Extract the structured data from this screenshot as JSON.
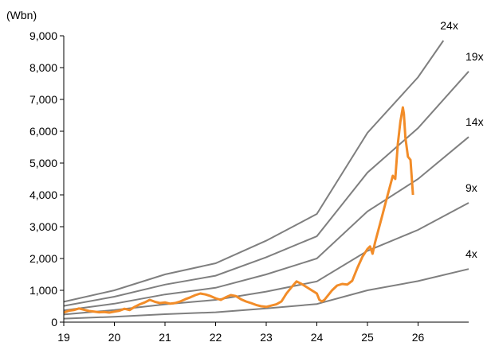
{
  "chart_data": {
    "type": "line",
    "title": "",
    "xlabel": "",
    "ylabel": "(Wbn)",
    "xlim": [
      19,
      27.0
    ],
    "ylim": [
      0,
      9000
    ],
    "x_ticks": [
      "19",
      "20",
      "21",
      "22",
      "23",
      "24",
      "25",
      "26"
    ],
    "y_ticks": [
      "0",
      "1,000",
      "2,000",
      "3,000",
      "4,000",
      "5,000",
      "6,000",
      "7,000",
      "8,000",
      "9,000"
    ],
    "grid": false,
    "colors": {
      "price_line": "#F28C28",
      "band_lines": "#7F7F7F",
      "axis": "#000000"
    },
    "band_series": [
      {
        "name": "24x",
        "points": [
          [
            19,
            640
          ],
          [
            20,
            1000
          ],
          [
            21,
            1500
          ],
          [
            22,
            1850
          ],
          [
            23,
            2560
          ],
          [
            24,
            3400
          ],
          [
            25,
            5950
          ],
          [
            26,
            7700
          ],
          [
            26.5,
            8850
          ]
        ]
      },
      {
        "name": "19x",
        "points": [
          [
            19,
            510
          ],
          [
            20,
            800
          ],
          [
            21,
            1180
          ],
          [
            22,
            1460
          ],
          [
            23,
            2040
          ],
          [
            24,
            2700
          ],
          [
            25,
            4700
          ],
          [
            26,
            6100
          ],
          [
            27,
            7880
          ]
        ]
      },
      {
        "name": "14x",
        "points": [
          [
            19,
            370
          ],
          [
            20,
            580
          ],
          [
            21,
            870
          ],
          [
            22,
            1080
          ],
          [
            23,
            1500
          ],
          [
            24,
            2000
          ],
          [
            25,
            3480
          ],
          [
            26,
            4500
          ],
          [
            27,
            5820
          ]
        ]
      },
      {
        "name": "9x",
        "points": [
          [
            19,
            240
          ],
          [
            20,
            380
          ],
          [
            21,
            560
          ],
          [
            22,
            700
          ],
          [
            23,
            960
          ],
          [
            24,
            1280
          ],
          [
            25,
            2240
          ],
          [
            26,
            2900
          ],
          [
            27,
            3750
          ]
        ]
      },
      {
        "name": "4x",
        "points": [
          [
            19,
            110
          ],
          [
            20,
            170
          ],
          [
            21,
            250
          ],
          [
            22,
            310
          ],
          [
            23,
            430
          ],
          [
            24,
            570
          ],
          [
            25,
            1000
          ],
          [
            26,
            1290
          ],
          [
            27,
            1670
          ]
        ]
      }
    ],
    "price_series": {
      "points": [
        [
          19.0,
          300
        ],
        [
          19.1,
          360
        ],
        [
          19.2,
          380
        ],
        [
          19.3,
          430
        ],
        [
          19.4,
          390
        ],
        [
          19.5,
          350
        ],
        [
          19.6,
          330
        ],
        [
          19.7,
          310
        ],
        [
          19.8,
          320
        ],
        [
          19.9,
          300
        ],
        [
          20.0,
          330
        ],
        [
          20.1,
          360
        ],
        [
          20.2,
          420
        ],
        [
          20.3,
          380
        ],
        [
          20.4,
          480
        ],
        [
          20.5,
          560
        ],
        [
          20.6,
          620
        ],
        [
          20.7,
          700
        ],
        [
          20.8,
          640
        ],
        [
          20.9,
          600
        ],
        [
          21.0,
          620
        ],
        [
          21.1,
          580
        ],
        [
          21.2,
          600
        ],
        [
          21.3,
          650
        ],
        [
          21.4,
          720
        ],
        [
          21.5,
          780
        ],
        [
          21.6,
          850
        ],
        [
          21.7,
          900
        ],
        [
          21.8,
          870
        ],
        [
          21.9,
          820
        ],
        [
          22.0,
          750
        ],
        [
          22.1,
          700
        ],
        [
          22.2,
          780
        ],
        [
          22.3,
          850
        ],
        [
          22.4,
          820
        ],
        [
          22.5,
          720
        ],
        [
          22.6,
          650
        ],
        [
          22.7,
          600
        ],
        [
          22.8,
          540
        ],
        [
          22.9,
          500
        ],
        [
          23.0,
          480
        ],
        [
          23.1,
          520
        ],
        [
          23.2,
          560
        ],
        [
          23.3,
          650
        ],
        [
          23.4,
          900
        ],
        [
          23.5,
          1100
        ],
        [
          23.6,
          1280
        ],
        [
          23.7,
          1200
        ],
        [
          23.8,
          1100
        ],
        [
          23.9,
          1000
        ],
        [
          24.0,
          900
        ],
        [
          24.05,
          700
        ],
        [
          24.1,
          650
        ],
        [
          24.15,
          700
        ],
        [
          24.2,
          800
        ],
        [
          24.3,
          1000
        ],
        [
          24.4,
          1150
        ],
        [
          24.5,
          1200
        ],
        [
          24.6,
          1180
        ],
        [
          24.7,
          1300
        ],
        [
          24.8,
          1700
        ],
        [
          24.9,
          2050
        ],
        [
          25.0,
          2300
        ],
        [
          25.05,
          2380
        ],
        [
          25.1,
          2150
        ],
        [
          25.15,
          2500
        ],
        [
          25.2,
          2800
        ],
        [
          25.25,
          3100
        ],
        [
          25.3,
          3400
        ],
        [
          25.35,
          3700
        ],
        [
          25.4,
          4000
        ],
        [
          25.45,
          4300
        ],
        [
          25.5,
          4600
        ],
        [
          25.55,
          4500
        ],
        [
          25.6,
          5600
        ],
        [
          25.65,
          6300
        ],
        [
          25.7,
          6750
        ],
        [
          25.72,
          6550
        ],
        [
          25.75,
          5800
        ],
        [
          25.8,
          5200
        ],
        [
          25.85,
          5100
        ],
        [
          25.9,
          4000
        ]
      ]
    }
  }
}
